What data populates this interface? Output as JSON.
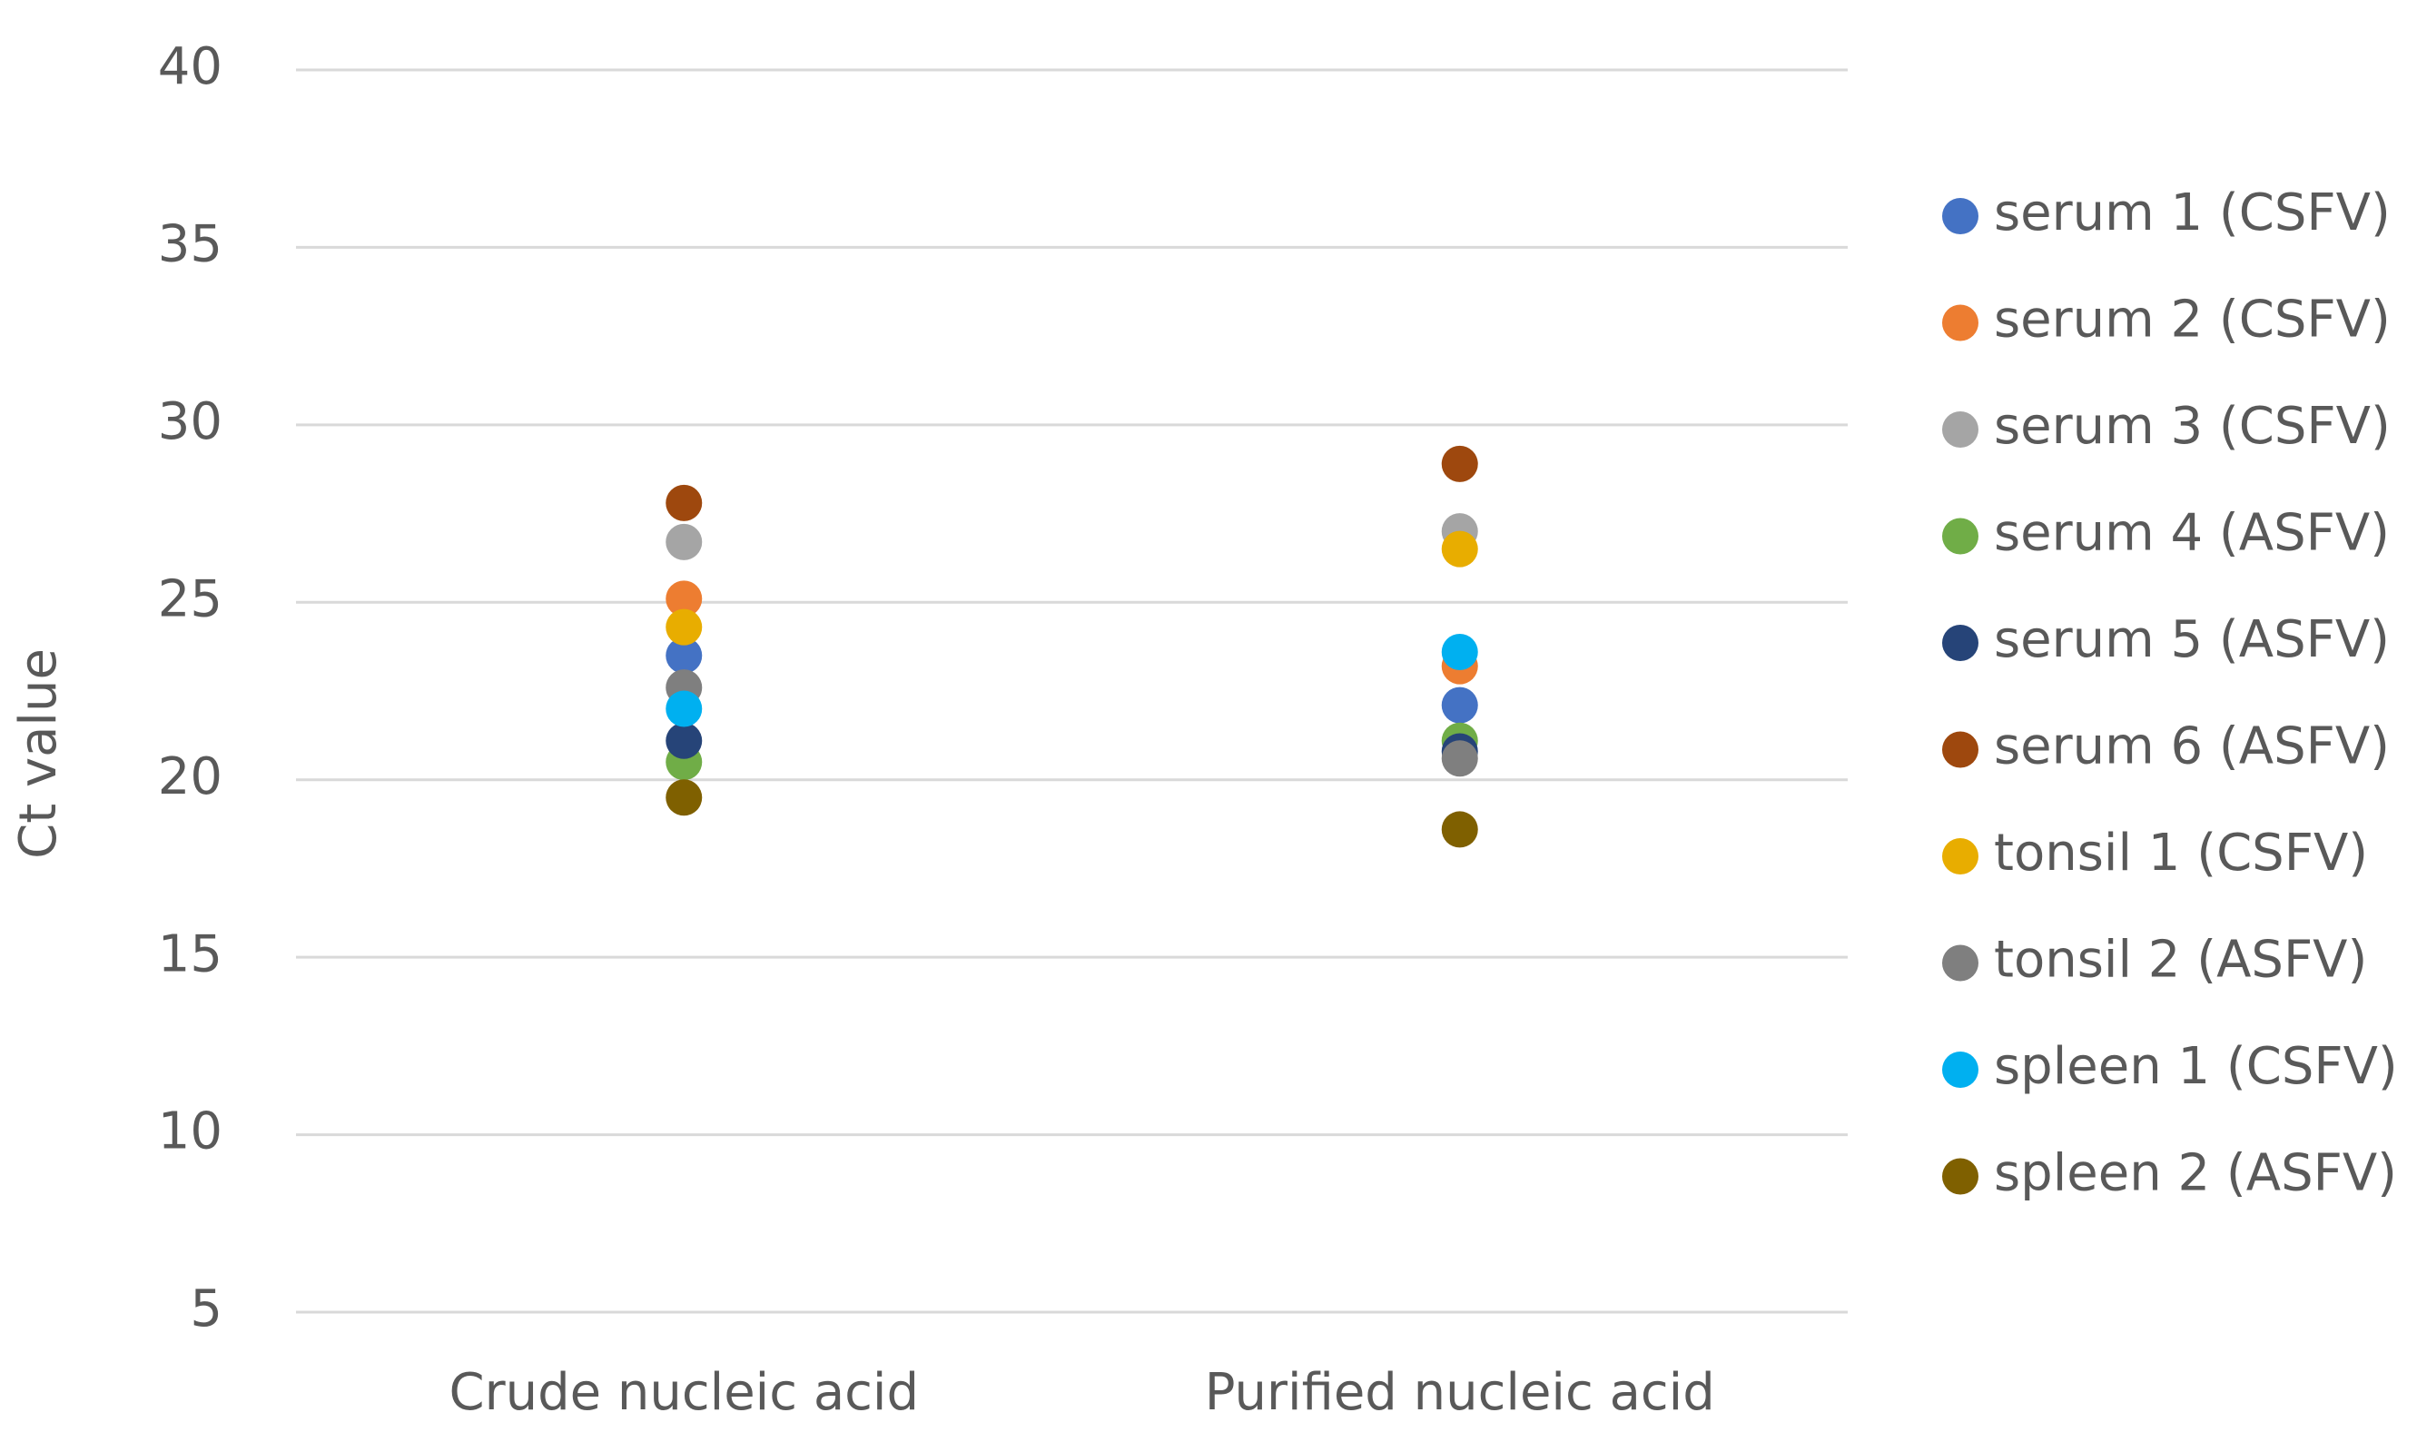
{
  "chart_data": {
    "type": "scatter",
    "y_label": "Ct value",
    "categories": [
      "Crude nucleic acid",
      "Purified nucleic acid"
    ],
    "ylim": [
      5,
      40
    ],
    "yticks": [
      5,
      10,
      15,
      20,
      25,
      30,
      35,
      40
    ],
    "grid": true,
    "legend": "right",
    "series": [
      {
        "name": "serum 1 (CSFV)",
        "color": "#4472c4",
        "values": [
          23.5,
          22.1
        ]
      },
      {
        "name": "serum 2 (CSFV)",
        "color": "#ed7d31",
        "values": [
          25.1,
          23.2
        ]
      },
      {
        "name": "serum 3 (CSFV)",
        "color": "#a5a5a5",
        "values": [
          26.7,
          27.0
        ]
      },
      {
        "name": "serum 4 (ASFV)",
        "color": "#70ad47",
        "values": [
          20.5,
          21.1
        ]
      },
      {
        "name": "serum 5 (ASFV)",
        "color": "#264478",
        "values": [
          21.1,
          20.8
        ]
      },
      {
        "name": "serum 6 (ASFV)",
        "color": "#9e480e",
        "values": [
          27.8,
          28.9
        ]
      },
      {
        "name": "tonsil 1 (CSFV)",
        "color": "#e8ad00",
        "values": [
          24.3,
          26.5
        ]
      },
      {
        "name": "tonsil 2 (ASFV)",
        "color": "#7f7f7f",
        "values": [
          22.6,
          20.6
        ]
      },
      {
        "name": "spleen 1 (CSFV)",
        "color": "#00b0f0",
        "values": [
          22.0,
          23.6
        ]
      },
      {
        "name": "spleen 2 (ASFV)",
        "color": "#7f6000",
        "values": [
          19.5,
          18.6
        ]
      }
    ]
  }
}
